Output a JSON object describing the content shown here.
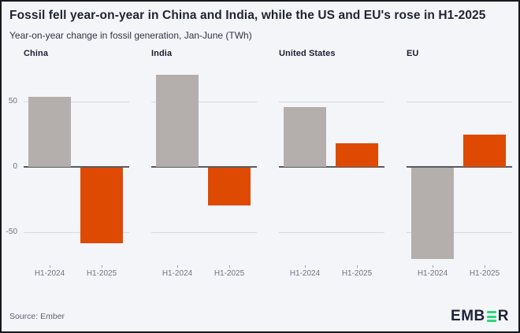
{
  "header": {
    "title": "Fossil fell year-on-year in China and India, while the US and EU's rose in H1-2025",
    "subtitle": "Year-on-year change in fossil generation, Jan-June (TWh)"
  },
  "chart_data": {
    "type": "bar",
    "layout": "small-multiples",
    "categories": [
      "H1-2024",
      "H1-2025"
    ],
    "panels": [
      {
        "title": "China",
        "values": [
          54,
          -58
        ]
      },
      {
        "title": "India",
        "values": [
          71,
          -29
        ]
      },
      {
        "title": "United States",
        "values": [
          46,
          18
        ]
      },
      {
        "title": "EU",
        "values": [
          -70,
          25
        ]
      }
    ],
    "yticks": [
      50,
      0,
      -50
    ],
    "ylim": [
      -75,
      80
    ],
    "ylabel": "",
    "unit": "TWh",
    "grid": true,
    "legend": "none",
    "colors": {
      "h1_2024": "#b4afac",
      "h1_2025": "#de4a02",
      "grid": "#d6d8dd",
      "zero_line": "#565b63",
      "background": "#f4f5f9",
      "title_text": "#1e2433",
      "tick_text": "#70757f"
    }
  },
  "footer": {
    "source": "Source: Ember",
    "logo": {
      "prefix": "EMB",
      "suffix": "R",
      "bar_color": "#2bd77c",
      "text_color": "#1d2336"
    }
  }
}
